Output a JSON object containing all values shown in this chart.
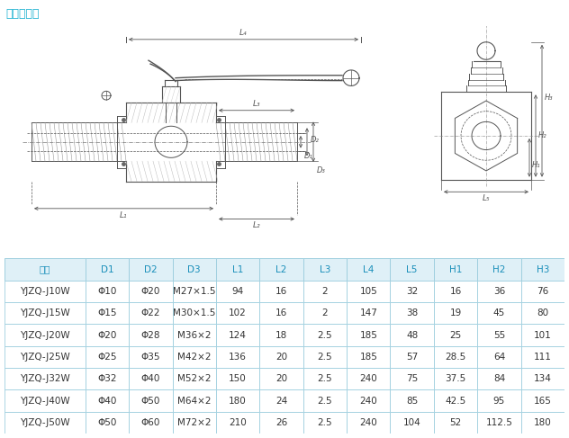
{
  "title": "外螺纹连接",
  "title_color": "#1ab0d0",
  "header": [
    "型号",
    "D1",
    "D2",
    "D3",
    "L1",
    "L2",
    "L3",
    "L4",
    "L5",
    "H1",
    "H2",
    "H3"
  ],
  "rows": [
    [
      "YJZQ-J10W",
      "Φ10",
      "Φ20",
      "M27×1.5",
      "94",
      "16",
      "2",
      "105",
      "32",
      "16",
      "36",
      "76"
    ],
    [
      "YJZQ-J15W",
      "Φ15",
      "Φ22",
      "M30×1.5",
      "102",
      "16",
      "2",
      "147",
      "38",
      "19",
      "45",
      "80"
    ],
    [
      "YJZQ-J20W",
      "Φ20",
      "Φ28",
      "M36×2",
      "124",
      "18",
      "2.5",
      "185",
      "48",
      "25",
      "55",
      "101"
    ],
    [
      "YJZQ-J25W",
      "Φ25",
      "Φ35",
      "M42×2",
      "136",
      "20",
      "2.5",
      "185",
      "57",
      "28.5",
      "64",
      "111"
    ],
    [
      "YJZQ-J32W",
      "Φ32",
      "Φ40",
      "M52×2",
      "150",
      "20",
      "2.5",
      "240",
      "75",
      "37.5",
      "84",
      "134"
    ],
    [
      "YJZQ-J40W",
      "Φ40",
      "Φ50",
      "M64×2",
      "180",
      "24",
      "2.5",
      "240",
      "85",
      "42.5",
      "95",
      "165"
    ],
    [
      "YJZQ-J50W",
      "Φ50",
      "Φ60",
      "M72×2",
      "210",
      "26",
      "2.5",
      "240",
      "104",
      "52",
      "112.5",
      "180"
    ]
  ],
  "header_bg": "#dff0f7",
  "header_text_color": "#1a8fba",
  "border_color": "#9fcfdf",
  "text_color": "#333333",
  "fig_bg": "#ffffff",
  "lc": "#555555",
  "dim_color": "#555555"
}
